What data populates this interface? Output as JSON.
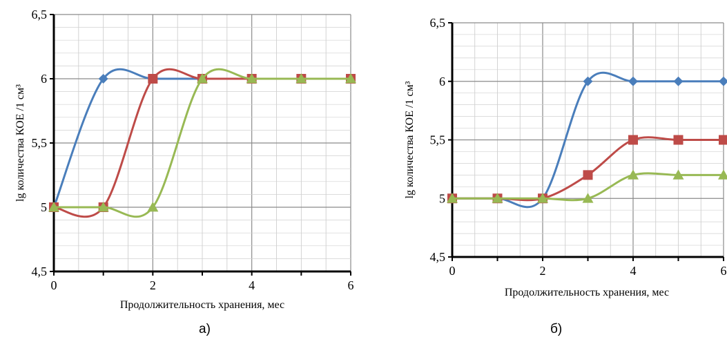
{
  "chart_data": [
    {
      "type": "line",
      "panel_caption": "а)",
      "xlabel": "Продолжительность хранения, мес",
      "ylabel": "lg  количества КОЕ /1 см³",
      "xlim": [
        0,
        6
      ],
      "ylim": [
        4.5,
        6.5
      ],
      "x_ticks": [
        "0",
        "2",
        "4",
        "6"
      ],
      "y_ticks": [
        "4,5",
        "5",
        "5,5",
        "6",
        "6,5"
      ],
      "grid": true,
      "series": [
        {
          "color": "#4a7ebb",
          "marker": "diamond",
          "x": [
            0,
            1,
            2,
            3,
            4,
            5,
            6
          ],
          "y": [
            5,
            6,
            6,
            6,
            6,
            6,
            6
          ]
        },
        {
          "color": "#be4b48",
          "marker": "square",
          "x": [
            0,
            1,
            2,
            3,
            4,
            5,
            6
          ],
          "y": [
            5,
            5,
            6,
            6,
            6,
            6,
            6
          ]
        },
        {
          "color": "#98b954",
          "marker": "triangle",
          "x": [
            0,
            1,
            2,
            3,
            4,
            5,
            6
          ],
          "y": [
            5,
            5,
            5,
            6,
            6,
            6,
            6
          ]
        }
      ]
    },
    {
      "type": "line",
      "panel_caption": "б)",
      "xlabel": "Продолжительность хранения, мес",
      "ylabel": "lg  количества КОЕ /1 см³",
      "xlim": [
        0,
        6
      ],
      "ylim": [
        4.5,
        6.5
      ],
      "x_ticks": [
        "0",
        "2",
        "4",
        "6"
      ],
      "y_ticks": [
        "4,5",
        "5",
        "5,5",
        "6",
        "6,5"
      ],
      "grid": true,
      "series": [
        {
          "color": "#4a7ebb",
          "marker": "diamond",
          "x": [
            0,
            1,
            2,
            3,
            4,
            5,
            6
          ],
          "y": [
            5,
            5,
            5,
            6,
            6,
            6,
            6
          ]
        },
        {
          "color": "#be4b48",
          "marker": "square",
          "x": [
            0,
            1,
            2,
            3,
            4,
            5,
            6
          ],
          "y": [
            5,
            5,
            5,
            5.2,
            5.5,
            5.5,
            5.5
          ]
        },
        {
          "color": "#98b954",
          "marker": "triangle",
          "x": [
            0,
            1,
            2,
            3,
            4,
            5,
            6
          ],
          "y": [
            5,
            5,
            5,
            5,
            5.2,
            5.2,
            5.2
          ]
        }
      ]
    }
  ]
}
